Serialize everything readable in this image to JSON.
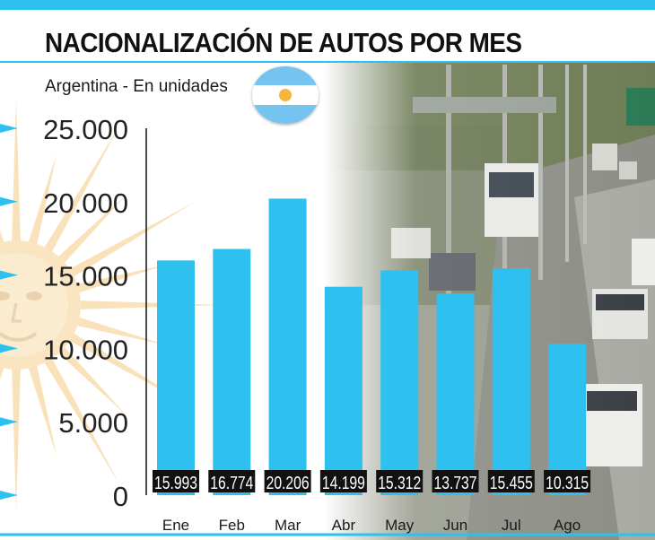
{
  "title": "NACIONALIZACIÓN DE AUTOS POR MES",
  "subtitle": "Argentina - En unidades",
  "colors": {
    "bar": "#2ec0ee",
    "accent": "#2ec0ee",
    "label_bg": "#111111",
    "label_text": "#ffffff"
  },
  "chart_data": {
    "type": "bar",
    "title": "NACIONALIZACIÓN DE AUTOS POR MES",
    "subtitle": "Argentina - En unidades",
    "categories": [
      "Ene",
      "Feb",
      "Mar",
      "Abr",
      "May",
      "Jun",
      "Jul",
      "Ago"
    ],
    "values": [
      15993,
      16774,
      20206,
      14199,
      15312,
      13737,
      15455,
      10315
    ],
    "value_labels": [
      "15.993",
      "16.774",
      "20.206",
      "14.199",
      "15.312",
      "13.737",
      "15.455",
      "10.315"
    ],
    "yticks": [
      0,
      5000,
      10000,
      15000,
      20000,
      25000
    ],
    "ytick_labels": [
      "0",
      "5.000",
      "10.000",
      "15.000",
      "20.000",
      "25.000"
    ],
    "ylim": [
      0,
      25000
    ],
    "xlabel": "",
    "ylabel": "",
    "grid": false,
    "legend": "none"
  }
}
